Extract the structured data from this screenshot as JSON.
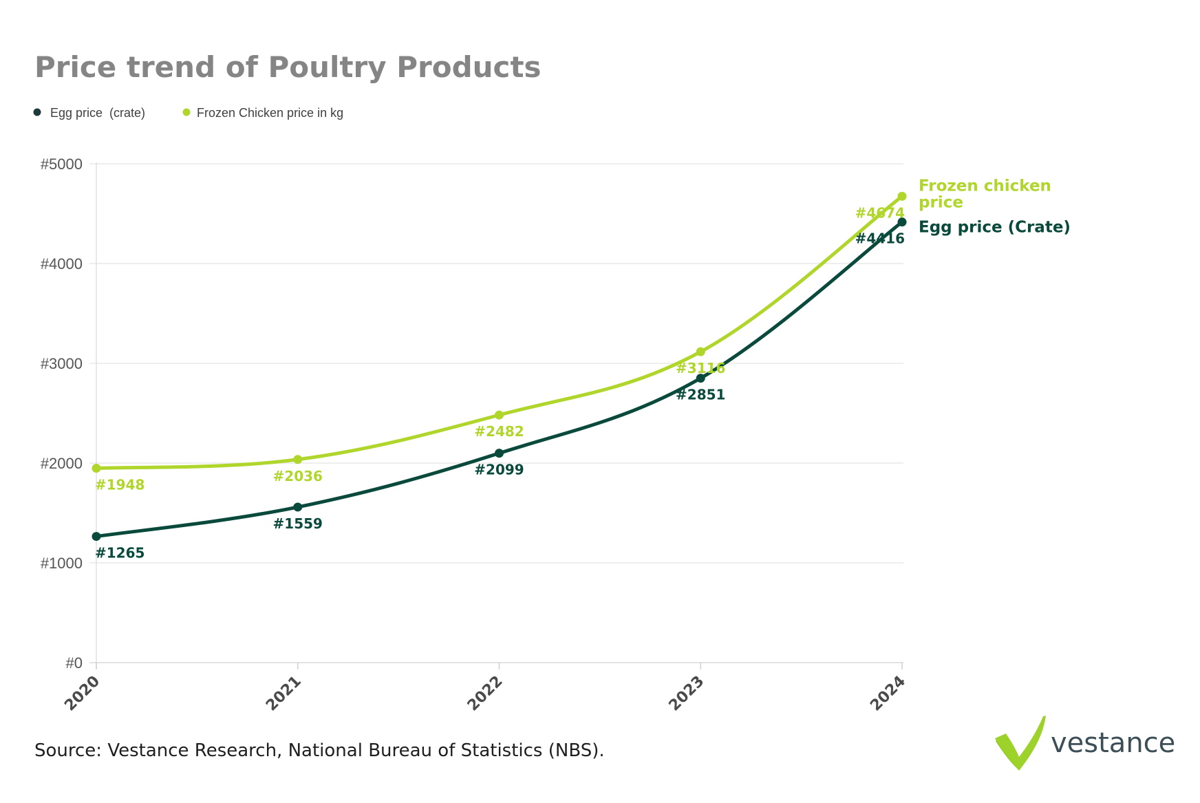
{
  "chart_data": {
    "type": "line",
    "title": "Price trend of Poultry Products",
    "x": [
      "2020",
      "2021",
      "2022",
      "2023",
      "2024"
    ],
    "y_ticks": [
      "#0",
      "#1000",
      "#2000",
      "#3000",
      "#4000",
      "#5000"
    ],
    "ylim": [
      0,
      5000
    ],
    "grid": true,
    "legend_position": "top-left",
    "series": [
      {
        "name": "Egg price  (crate)",
        "end_label": "Egg price (Crate)",
        "color": "#0a4a3c",
        "values": [
          1265,
          1559,
          2099,
          2851,
          4416
        ],
        "data_labels": [
          "#1265",
          "#1559",
          "#2099",
          "#2851",
          "#4416"
        ]
      },
      {
        "name": "Frozen Chicken price in kg",
        "end_label_lines": [
          "Frozen chicken",
          "price"
        ],
        "color": "#b0d62c",
        "values": [
          1948,
          2036,
          2482,
          3116,
          4674
        ],
        "data_labels": [
          "#1948",
          "#2036",
          "#2482",
          "#3116",
          "#4674"
        ]
      }
    ]
  },
  "footer": {
    "source": "Source: Vestance Research, National Bureau of Statistics (NBS).",
    "logo_text": "vestance",
    "logo_icon": "checkmark-icon"
  }
}
